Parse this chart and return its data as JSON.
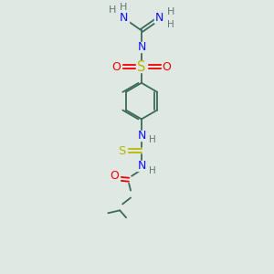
{
  "bg_color": "#e0e8e4",
  "bond_color": "#3a6b5a",
  "colors": {
    "N": "#1010ff",
    "O": "#ee0000",
    "S": "#b8b800",
    "H": "#607878",
    "C": "#3a6b5a"
  },
  "figsize": [
    3.0,
    3.0
  ],
  "dpi": 100
}
